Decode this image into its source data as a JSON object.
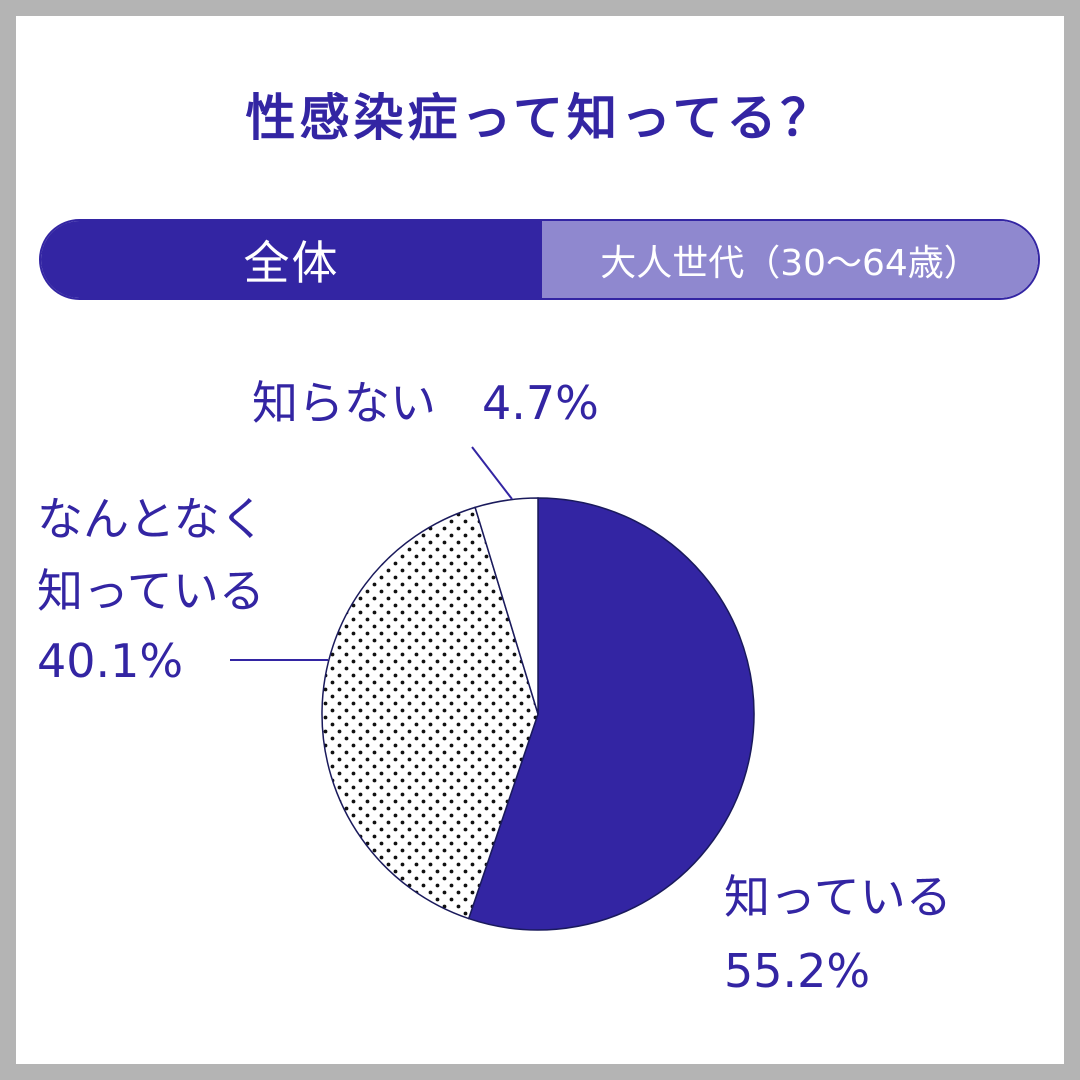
{
  "header": {
    "title": "性感染症って知ってる？"
  },
  "tabs": [
    {
      "label": "全体",
      "active": true
    },
    {
      "label": "大人世代（30〜64歳）",
      "active": false
    }
  ],
  "colors": {
    "primary": "#3325a3",
    "tab_inactive": "#8f88cf",
    "background": "#ffffff",
    "frame": "#b4b4b4"
  },
  "chart_data": {
    "type": "pie",
    "title": "性感染症って知ってる？",
    "slices": [
      {
        "label": "知っている",
        "value": 55.2,
        "value_text": "55.2%",
        "color": "#3325a3",
        "fill": "solid"
      },
      {
        "label": "なんとなく知っている",
        "value": 40.1,
        "value_text": "40.1%",
        "color": "#ffffff",
        "fill": "dotted"
      },
      {
        "label": "知らない",
        "value": 4.7,
        "value_text": "4.7%",
        "color": "#ffffff",
        "fill": "white"
      }
    ],
    "start_angle": "12 o'clock",
    "direction": "clockwise"
  },
  "labels": {
    "unknown": {
      "line1": "知らない　4.7%"
    },
    "vague": {
      "line1": "なんとなく",
      "line2": "知っている",
      "line3": "40.1%"
    },
    "known": {
      "line1": "知っている",
      "line2": "55.2%"
    }
  }
}
